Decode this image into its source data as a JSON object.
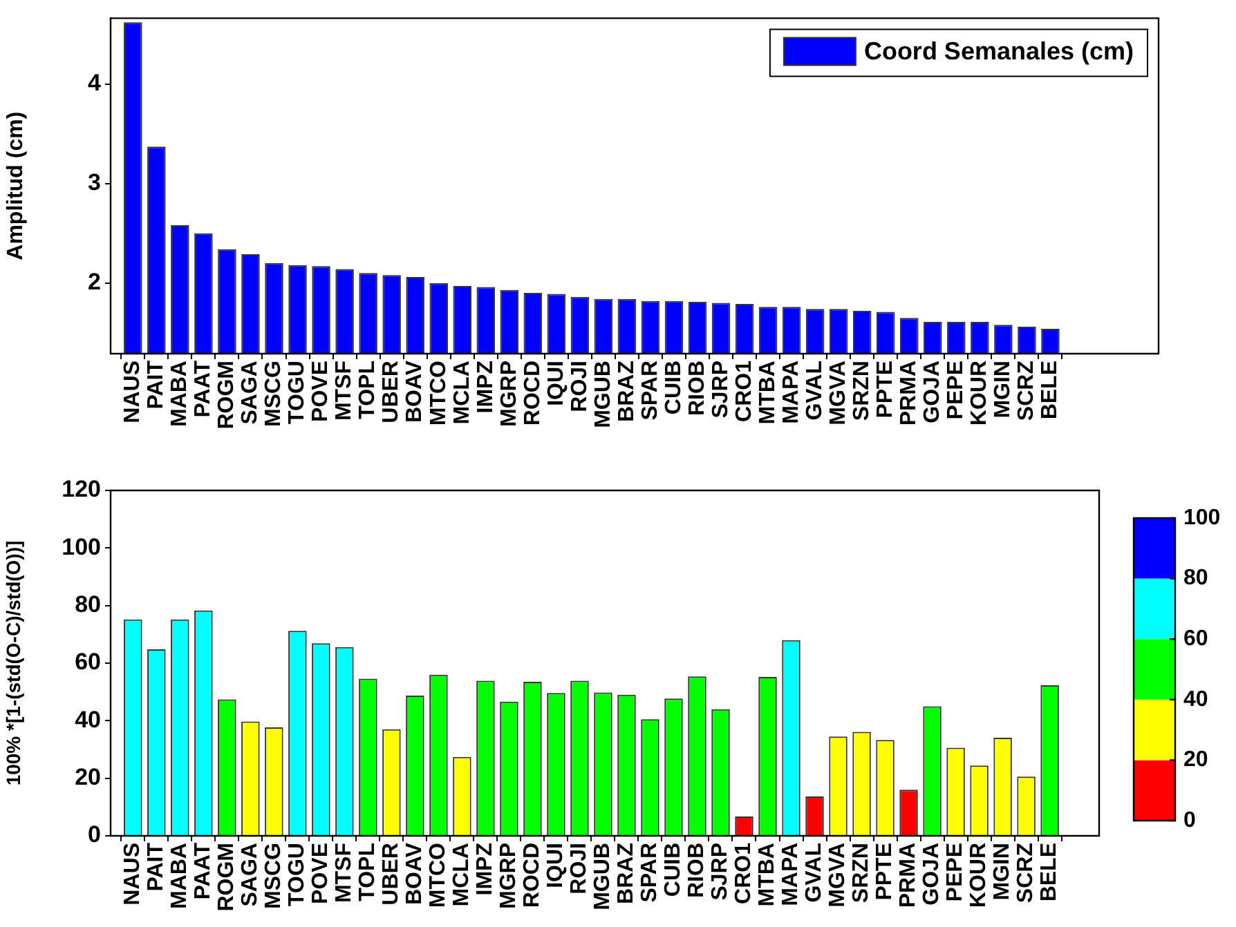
{
  "chart_data": [
    {
      "type": "bar",
      "ylabel": "Amplitud (cm)",
      "legend": "top right",
      "categories": [
        "NAUS",
        "PAIT",
        "MABA",
        "PAAT",
        "ROGM",
        "SAGA",
        "MSCG",
        "TOGU",
        "POVE",
        "MTSF",
        "TOPL",
        "UBER",
        "BOAV",
        "MTCO",
        "MCLA",
        "IMPZ",
        "MGRP",
        "ROCD",
        "IQUI",
        "ROJI",
        "MGUB",
        "BRAZ",
        "SPAR",
        "CUIB",
        "RIOB",
        "SJRP",
        "CRO1",
        "MTBA",
        "MAPA",
        "GVAL",
        "MGVA",
        "SRZN",
        "PPTE",
        "PRMA",
        "GOJA",
        "PEPE",
        "KOUR",
        "MGIN",
        "SCRZ",
        "BELE"
      ],
      "series": [
        {
          "name": "Coord Semanales (cm)",
          "color": "#0000ff",
          "values": [
            4.62,
            3.37,
            2.58,
            2.5,
            2.34,
            2.29,
            2.2,
            2.18,
            2.17,
            2.14,
            2.1,
            2.08,
            2.06,
            2.0,
            1.97,
            1.96,
            1.93,
            1.9,
            1.89,
            1.86,
            1.84,
            1.84,
            1.82,
            1.82,
            1.81,
            1.8,
            1.79,
            1.76,
            1.76,
            1.74,
            1.74,
            1.72,
            1.71,
            1.65,
            1.61,
            1.61,
            1.61,
            1.58,
            1.56,
            1.54
          ]
        }
      ],
      "ylim": [
        1.29,
        4.66
      ],
      "yticks": [
        2,
        3,
        4
      ]
    },
    {
      "type": "bar",
      "ylabel": "100% *[1-(std(O-C)/std(O))]",
      "categories": [
        "NAUS",
        "PAIT",
        "MABA",
        "PAAT",
        "ROGM",
        "SAGA",
        "MSCG",
        "TOGU",
        "POVE",
        "MTSF",
        "TOPL",
        "UBER",
        "BOAV",
        "MTCO",
        "MCLA",
        "IMPZ",
        "MGRP",
        "ROCD",
        "IQUI",
        "ROJI",
        "MGUB",
        "BRAZ",
        "SPAR",
        "CUIB",
        "RIOB",
        "SJRP",
        "CRO1",
        "MTBA",
        "MAPA",
        "GVAL",
        "MGVA",
        "SRZN",
        "PPTE",
        "PRMA",
        "GOJA",
        "PEPE",
        "KOUR",
        "MGIN",
        "SCRZ",
        "BELE"
      ],
      "values": [
        75.2,
        64.8,
        75.2,
        78.3,
        47.4,
        39.7,
        37.7,
        71.2,
        66.9,
        65.6,
        54.6,
        37.0,
        48.7,
        56.0,
        27.4,
        53.9,
        46.6,
        53.5,
        49.6,
        53.9,
        49.8,
        49.0,
        40.5,
        47.7,
        55.4,
        44.0,
        6.7,
        55.2,
        68.0,
        13.7,
        34.5,
        36.1,
        33.3,
        16.0,
        45.0,
        30.6,
        24.4,
        34.1,
        20.6,
        52.3
      ],
      "colors": [
        "#00ffff",
        "#00ffff",
        "#00ffff",
        "#00ffff",
        "#00ff00",
        "#ffff00",
        "#ffff00",
        "#00ffff",
        "#00ffff",
        "#00ffff",
        "#00ff00",
        "#ffff00",
        "#00ff00",
        "#00ff00",
        "#ffff00",
        "#00ff00",
        "#00ff00",
        "#00ff00",
        "#00ff00",
        "#00ff00",
        "#00ff00",
        "#00ff00",
        "#00ff00",
        "#00ff00",
        "#00ff00",
        "#00ff00",
        "#ff0000",
        "#00ff00",
        "#00ffff",
        "#ff0000",
        "#ffff00",
        "#ffff00",
        "#ffff00",
        "#ff0000",
        "#00ff00",
        "#ffff00",
        "#ffff00",
        "#ffff00",
        "#ffff00",
        "#00ff00"
      ],
      "ylim": [
        0,
        120
      ],
      "yticks": [
        0,
        20,
        40,
        60,
        80,
        100,
        120
      ],
      "clim": [
        0,
        100
      ],
      "cticks": [
        0,
        20,
        40,
        60,
        80,
        100
      ]
    }
  ]
}
